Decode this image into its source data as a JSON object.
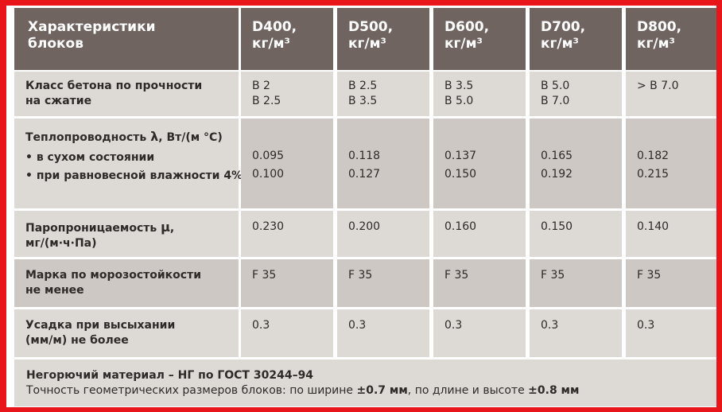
{
  "header": {
    "characteristics": [
      "Характеристики",
      "блоков"
    ],
    "density_unit": "кг/м³",
    "grades": [
      "D400,",
      "D500,",
      "D600,",
      "D700,",
      "D800,"
    ]
  },
  "rows": {
    "strength": {
      "label": [
        "Класс бетона по прочности",
        "на сжатие"
      ],
      "values": [
        [
          "B 2",
          "B 2.5"
        ],
        [
          "B 2.5",
          "B 3.5"
        ],
        [
          "B 3.5",
          "B 5.0"
        ],
        [
          "B 5.0",
          "B 7.0"
        ],
        [
          "> B 7.0",
          ""
        ]
      ]
    },
    "conductivity": {
      "label_main": "Теплопроводность",
      "symbol": "λ",
      "unit": ", Вт/(м °С)",
      "dry": "• в сухом состоянии",
      "humid": "• при равновесной влажности 4%",
      "values": [
        [
          "0.095",
          "0.100"
        ],
        [
          "0.118",
          "0.127"
        ],
        [
          "0.137",
          "0.150"
        ],
        [
          "0.165",
          "0.192"
        ],
        [
          "0.182",
          "0.215"
        ]
      ]
    },
    "permeability": {
      "label_main": "Паропроницаемость",
      "symbol": "μ",
      "label_comma": ",",
      "unit": "мг/(м·ч·Па)",
      "values": [
        "0.230",
        "0.200",
        "0.160",
        "0.150",
        "0.140"
      ]
    },
    "frost": {
      "label": [
        "Марка по морозостойкости",
        "не менее"
      ],
      "values": [
        "F 35",
        "F 35",
        "F 35",
        "F 35",
        "F 35"
      ]
    },
    "shrinkage": {
      "label": [
        "Усадка при высыхании",
        "(мм/м) не более"
      ],
      "values": [
        "0.3",
        "0.3",
        "0.3",
        "0.3",
        "0.3"
      ]
    }
  },
  "footer": {
    "line1": "Негорючий материал – НГ по ГОСТ 30244–94",
    "line2_prefix": "Точность геометрических размеров блоков: по ширине ",
    "width_tol": "±0.7 мм",
    "line2_mid": ", по длине и высоте ",
    "length_tol": "±0.8 мм"
  },
  "colors": {
    "background": "#e8161b",
    "header": "#6f6460",
    "cell_light": "#dddad6",
    "cell_dark": "#cdc8c4"
  }
}
